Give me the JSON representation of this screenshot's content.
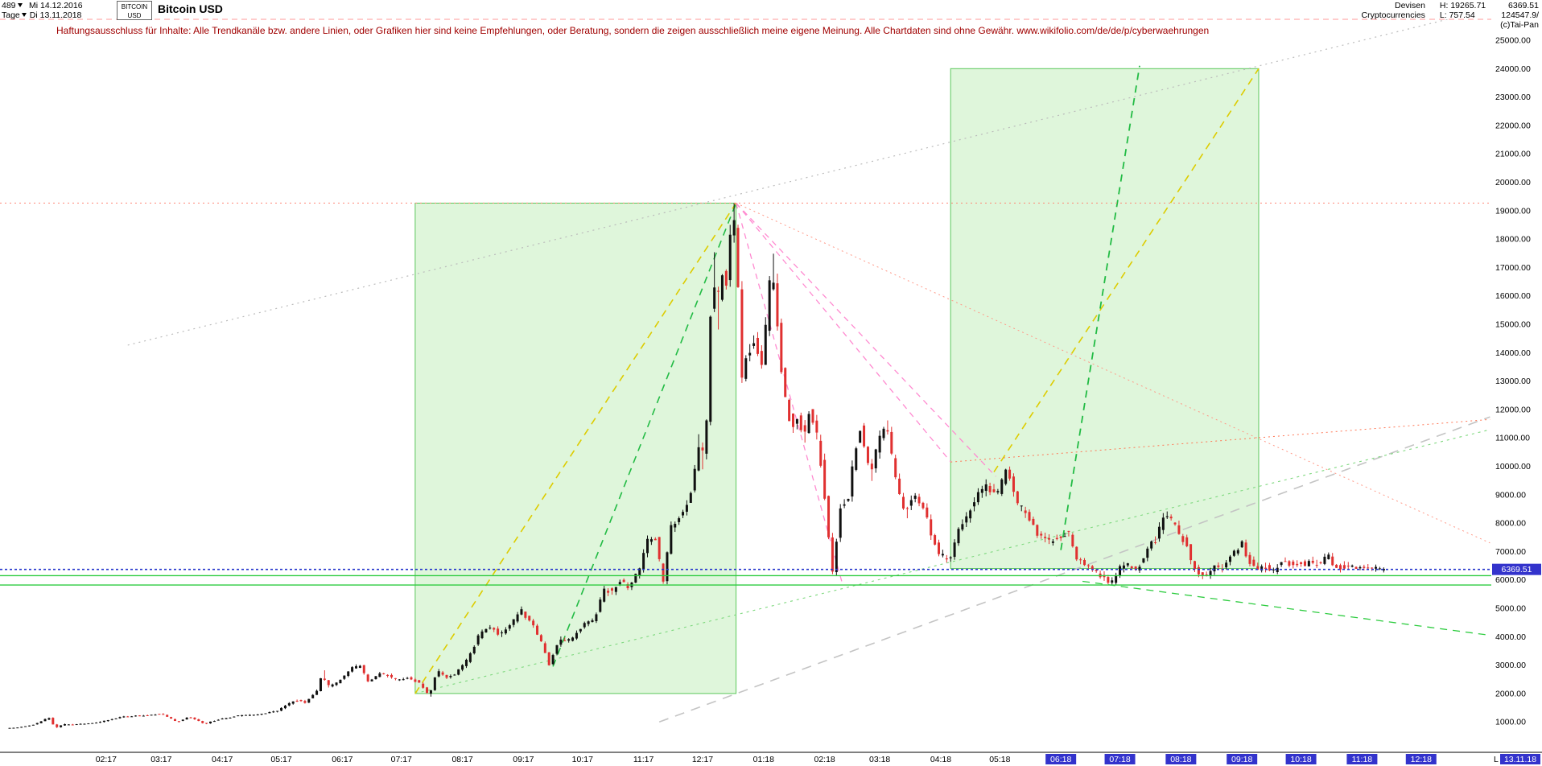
{
  "colors": {
    "candle_up": "#101010",
    "candle_down": "#e03030",
    "box_fill": "rgba(185,235,175,0.45)",
    "box_stroke": "#5cc85c",
    "highlight": "#3333cc",
    "price_marker": "#3333cc",
    "panel_border": "#ff9999",
    "disclaimer_text": "#a00000"
  },
  "header": {
    "bars_count": "489",
    "date_from": "Mi 14.12.2016",
    "period": "Tage",
    "date_to": "Di 13.11.2018",
    "symbol_top": "BITCOIN",
    "symbol_bottom": "USD",
    "title": "Bitcoin USD"
  },
  "info": {
    "cat1": "Devisen",
    "cat2": "Cryptocurrencies",
    "high": "H: 19265.71",
    "low": "L: 757.54",
    "last": "6369.51",
    "volume": "124547.9/",
    "copyright": "(c)Tai-Pan"
  },
  "disclaimer": "Haftungsausschluss für Inhalte: Alle Trendkanäle bzw. andere Linien, oder Grafiken hier sind keine Empfehlungen, oder Beratung, sondern die zeigen ausschließlich meine eigene Meinung. Alle Chartdaten sind ohne Gewähr.  www.wikifolio.com/de/de/p/cyberwaehrungen",
  "chart_data": {
    "type": "candlestick",
    "instrument": "Bitcoin USD",
    "category": "Devisen / Cryptocurrencies",
    "period": "Tage",
    "bars": 489,
    "days_total": 699,
    "range": {
      "from": "14.12.2016",
      "to": "13.11.2018"
    },
    "stats": {
      "high": 19265.71,
      "low": 757.54,
      "last": 6369.51
    },
    "y_axis": {
      "values": [
        25000,
        24000,
        23000,
        22000,
        21000,
        20000,
        19000,
        18000,
        17000,
        16000,
        15000,
        14000,
        13000,
        12000,
        11000,
        10000,
        9000,
        8000,
        7000,
        6000,
        5000,
        4000,
        3000,
        2000,
        1000
      ]
    },
    "x_axis": {
      "months": [
        {
          "label": "02:17",
          "day": 49,
          "highlight": false
        },
        {
          "label": "03:17",
          "day": 77,
          "highlight": false
        },
        {
          "label": "04:17",
          "day": 108,
          "highlight": false
        },
        {
          "label": "05:17",
          "day": 138,
          "highlight": false
        },
        {
          "label": "06:17",
          "day": 169,
          "highlight": false
        },
        {
          "label": "07:17",
          "day": 199,
          "highlight": false
        },
        {
          "label": "08:17",
          "day": 230,
          "highlight": false
        },
        {
          "label": "09:17",
          "day": 261,
          "highlight": false
        },
        {
          "label": "10:17",
          "day": 291,
          "highlight": false
        },
        {
          "label": "11:17",
          "day": 322,
          "highlight": false
        },
        {
          "label": "12:17",
          "day": 352,
          "highlight": false
        },
        {
          "label": "01:18",
          "day": 383,
          "highlight": false
        },
        {
          "label": "02:18",
          "day": 414,
          "highlight": false
        },
        {
          "label": "03:18",
          "day": 442,
          "highlight": false
        },
        {
          "label": "04:18",
          "day": 473,
          "highlight": false
        },
        {
          "label": "05:18",
          "day": 503,
          "highlight": false
        },
        {
          "label": "06:18",
          "day": 534,
          "highlight": true
        },
        {
          "label": "07:18",
          "day": 564,
          "highlight": true
        },
        {
          "label": "08:18",
          "day": 595,
          "highlight": true
        },
        {
          "label": "09:18",
          "day": 626,
          "highlight": true
        },
        {
          "label": "10:18",
          "day": 656,
          "highlight": true
        },
        {
          "label": "11:18",
          "day": 687,
          "highlight": true
        },
        {
          "label": "12:18",
          "day": 717,
          "highlight": true
        }
      ],
      "last_marker": {
        "prefix": "L",
        "date": "13.11.18"
      }
    },
    "price_path": [
      [
        0,
        780
      ],
      [
        6,
        800
      ],
      [
        14,
        905
      ],
      [
        22,
        1150
      ],
      [
        25,
        790
      ],
      [
        29,
        910
      ],
      [
        36,
        915
      ],
      [
        44,
        960
      ],
      [
        52,
        1060
      ],
      [
        60,
        1190
      ],
      [
        70,
        1230
      ],
      [
        79,
        1285
      ],
      [
        87,
        1000
      ],
      [
        93,
        1170
      ],
      [
        101,
        935
      ],
      [
        108,
        1085
      ],
      [
        118,
        1215
      ],
      [
        127,
        1245
      ],
      [
        138,
        1400
      ],
      [
        147,
        1760
      ],
      [
        152,
        1690
      ],
      [
        158,
        2100
      ],
      [
        161,
        2760
      ],
      [
        163,
        2250
      ],
      [
        167,
        2320
      ],
      [
        171,
        2550
      ],
      [
        175,
        2880
      ],
      [
        180,
        2980
      ],
      [
        184,
        2420
      ],
      [
        190,
        2720
      ],
      [
        195,
        2590
      ],
      [
        199,
        2480
      ],
      [
        205,
        2560
      ],
      [
        211,
        2330
      ],
      [
        215,
        1900
      ],
      [
        219,
        2820
      ],
      [
        224,
        2570
      ],
      [
        229,
        2730
      ],
      [
        235,
        3230
      ],
      [
        241,
        4150
      ],
      [
        246,
        4350
      ],
      [
        251,
        4060
      ],
      [
        256,
        4390
      ],
      [
        262,
        4920
      ],
      [
        269,
        4260
      ],
      [
        273,
        3650
      ],
      [
        276,
        3000
      ],
      [
        281,
        3930
      ],
      [
        287,
        3880
      ],
      [
        293,
        4400
      ],
      [
        299,
        4630
      ],
      [
        304,
        5670
      ],
      [
        308,
        5580
      ],
      [
        312,
        6010
      ],
      [
        316,
        5730
      ],
      [
        322,
        6460
      ],
      [
        326,
        7420
      ],
      [
        330,
        7410
      ],
      [
        334,
        5920
      ],
      [
        338,
        7870
      ],
      [
        343,
        8230
      ],
      [
        347,
        8790
      ],
      [
        350,
        9900
      ],
      [
        351,
        11100
      ],
      [
        353,
        9950
      ],
      [
        356,
        11640
      ],
      [
        359,
        17200
      ],
      [
        361,
        15100
      ],
      [
        363,
        16750
      ],
      [
        366,
        16480
      ],
      [
        369,
        19265
      ],
      [
        371,
        17800
      ],
      [
        374,
        13200
      ],
      [
        377,
        14100
      ],
      [
        381,
        14450
      ],
      [
        384,
        13400
      ],
      [
        389,
        17150
      ],
      [
        392,
        15100
      ],
      [
        394,
        13300
      ],
      [
        399,
        11300
      ],
      [
        403,
        11800
      ],
      [
        405,
        10900
      ],
      [
        408,
        12000
      ],
      [
        411,
        11500
      ],
      [
        414,
        10100
      ],
      [
        416,
        8850
      ],
      [
        420,
        6250
      ],
      [
        424,
        8600
      ],
      [
        428,
        8900
      ],
      [
        431,
        10500
      ],
      [
        434,
        11300
      ],
      [
        439,
        9650
      ],
      [
        444,
        11050
      ],
      [
        447,
        11550
      ],
      [
        453,
        9150
      ],
      [
        457,
        8300
      ],
      [
        460,
        8900
      ],
      [
        463,
        8950
      ],
      [
        466,
        8450
      ],
      [
        468,
        8150
      ],
      [
        471,
        7350
      ],
      [
        474,
        6950
      ],
      [
        479,
        6650
      ],
      [
        485,
        7950
      ],
      [
        489,
        8350
      ],
      [
        493,
        8870
      ],
      [
        498,
        9350
      ],
      [
        501,
        9100
      ],
      [
        504,
        9060
      ],
      [
        508,
        9840
      ],
      [
        511,
        9350
      ],
      [
        514,
        8670
      ],
      [
        518,
        8350
      ],
      [
        521,
        8100
      ],
      [
        524,
        7600
      ],
      [
        527,
        7500
      ],
      [
        530,
        7350
      ],
      [
        533,
        7450
      ],
      [
        537,
        7620
      ],
      [
        540,
        7650
      ],
      [
        543,
        6840
      ],
      [
        545,
        6760
      ],
      [
        549,
        6450
      ],
      [
        551,
        6500
      ],
      [
        555,
        6200
      ],
      [
        558,
        6080
      ],
      [
        561,
        5890
      ],
      [
        563,
        5920
      ],
      [
        567,
        6620
      ],
      [
        570,
        6550
      ],
      [
        574,
        6350
      ],
      [
        578,
        6700
      ],
      [
        581,
        7320
      ],
      [
        584,
        7420
      ],
      [
        588,
        8220
      ],
      [
        591,
        8180
      ],
      [
        594,
        7850
      ],
      [
        598,
        7420
      ],
      [
        601,
        7030
      ],
      [
        603,
        6460
      ],
      [
        606,
        6280
      ],
      [
        609,
        6150
      ],
      [
        612,
        6320
      ],
      [
        614,
        6480
      ],
      [
        618,
        6430
      ],
      [
        621,
        6700
      ],
      [
        625,
        7050
      ],
      [
        628,
        7260
      ],
      [
        631,
        6720
      ],
      [
        634,
        6420
      ],
      [
        636,
        6290
      ],
      [
        639,
        6500
      ],
      [
        643,
        6280
      ],
      [
        646,
        6480
      ],
      [
        648,
        6710
      ],
      [
        652,
        6590
      ],
      [
        655,
        6620
      ],
      [
        658,
        6580
      ],
      [
        660,
        6560
      ],
      [
        663,
        6620
      ],
      [
        666,
        6560
      ],
      [
        669,
        6620
      ],
      [
        671,
        6930
      ],
      [
        674,
        6590
      ],
      [
        677,
        6450
      ],
      [
        680,
        6470
      ],
      [
        684,
        6490
      ],
      [
        687,
        6380
      ],
      [
        690,
        6410
      ],
      [
        693,
        6430
      ],
      [
        695,
        6460
      ],
      [
        697,
        6420
      ],
      [
        699,
        6370
      ]
    ],
    "overlays": {
      "boxes": [
        {
          "d1": 206,
          "v1": 2000,
          "d2": 369,
          "v2": 19265
        },
        {
          "d1": 478,
          "v1": 6400,
          "d2": 634.5,
          "v2": 24000
        }
      ],
      "lines": [
        {
          "d1": 60,
          "v1": 14265,
          "d2": 740,
          "v2": 25900,
          "color": "#bbbbbb",
          "dash": "2 5",
          "w": 1.2,
          "name": "gray-dotted-trendline"
        },
        {
          "d1": 330,
          "v1": 1000,
          "d2": 752,
          "v2": 11740,
          "color": "#c4c4c4",
          "dash": "12 9",
          "w": 1.6,
          "name": "gray-dashed-trendline"
        },
        {
          "d1": 206,
          "v1": 2000,
          "d2": 752,
          "v2": 11290,
          "color": "#7ed87e",
          "dash": "3 5",
          "w": 1.1,
          "name": "green-support-line"
        },
        {
          "d1": 545,
          "v1": 5950,
          "d2": 752,
          "v2": 4050,
          "color": "#2ecc40",
          "dash": "9 7",
          "w": 1.3,
          "name": "green-descending-line"
        },
        {
          "d1": 206,
          "v1": 2000,
          "d2": 369,
          "v2": 19265,
          "color": "#ddcc00",
          "dash": "9 7",
          "w": 1.6,
          "name": "yellow-rally-line"
        },
        {
          "d1": 276,
          "v1": 2950,
          "d2": 369,
          "v2": 19265,
          "color": "#22bb44",
          "dash": "9 7",
          "w": 1.6,
          "name": "green-rally-line"
        },
        {
          "d1": 500,
          "v1": 9800,
          "d2": 634.5,
          "v2": 24000,
          "color": "#ddcc00",
          "dash": "9 7",
          "w": 1.6,
          "name": "yellow-projection-line"
        },
        {
          "d1": 534,
          "v1": 7050,
          "d2": 574,
          "v2": 24100,
          "color": "#22bb44",
          "dash": "9 7",
          "w": 1.8,
          "name": "green-projection-line"
        },
        {
          "d1": 369,
          "v1": 19265,
          "d2": 423,
          "v2": 5870,
          "color": "#ff8ad0",
          "dash": "7 6",
          "w": 1.3,
          "name": "pink-fan-line"
        },
        {
          "d1": 369,
          "v1": 19265,
          "d2": 478,
          "v2": 10160,
          "color": "#ff8ad0",
          "dash": "7 6",
          "w": 1.3,
          "name": "pink-fan-line"
        },
        {
          "d1": 369,
          "v1": 19265,
          "d2": 501,
          "v2": 9640,
          "color": "#ff8ad0",
          "dash": "7 6",
          "w": 1.3,
          "name": "pink-fan-line"
        },
        {
          "d1": 369,
          "v1": 19265,
          "d2": 752,
          "v2": 7300,
          "color": "#ff9988",
          "dash": "2 4",
          "w": 1,
          "name": "salmon-dotted-line"
        },
        {
          "d1": 478,
          "v1": 10150,
          "d2": 752,
          "v2": 11650,
          "color": "#ff7755",
          "dash": "2 4",
          "w": 1,
          "name": "red-dotted-rising-line"
        }
      ],
      "hlines": [
        {
          "v": 19265.7,
          "color": "#ff8877",
          "dash": "2 4",
          "w": 1,
          "name": "ath-level-line"
        },
        {
          "v": 6369.51,
          "color": "#2233cc",
          "dash": "3 3",
          "w": 1.6,
          "name": "current-price-line"
        },
        {
          "v": 6150,
          "color": "#2ecc40",
          "dash": "",
          "w": 1.4,
          "name": "green-support-level"
        },
        {
          "v": 5820,
          "color": "#2ecc40",
          "dash": "",
          "w": 1.4,
          "name": "green-support-level"
        }
      ]
    }
  }
}
